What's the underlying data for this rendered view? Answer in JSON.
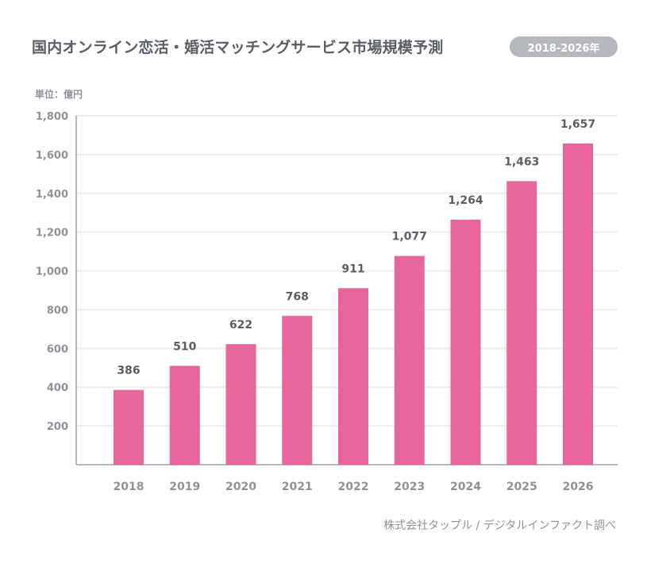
{
  "header": {
    "title": "国内オンライン恋活・婚活マッチングサービス市場規模予測",
    "badge": "2018-2026年"
  },
  "unit_label": "単位：億円",
  "source": "株式会社タップル / デジタルインファクト調べ",
  "colors": {
    "bar": "#e8669b",
    "axis": "#b5b8bf",
    "grid": "#ebedf0"
  },
  "chart_data": {
    "type": "bar",
    "categories": [
      "2018",
      "2019",
      "2020",
      "2021",
      "2022",
      "2023",
      "2024",
      "2025",
      "2026"
    ],
    "values": [
      386,
      510,
      622,
      768,
      911,
      1077,
      1264,
      1463,
      1657
    ],
    "value_labels": [
      "386",
      "510",
      "622",
      "768",
      "911",
      "1,077",
      "1,264",
      "1,463",
      "1,657"
    ],
    "yticks": [
      200,
      400,
      600,
      800,
      1000,
      1200,
      1400,
      1600,
      1800
    ],
    "ytick_labels": [
      "200",
      "400",
      "600",
      "800",
      "1,000",
      "1,200",
      "1,400",
      "1,600",
      "1,800"
    ],
    "ylim": [
      0,
      1800
    ],
    "grid": true,
    "legend": "none"
  }
}
